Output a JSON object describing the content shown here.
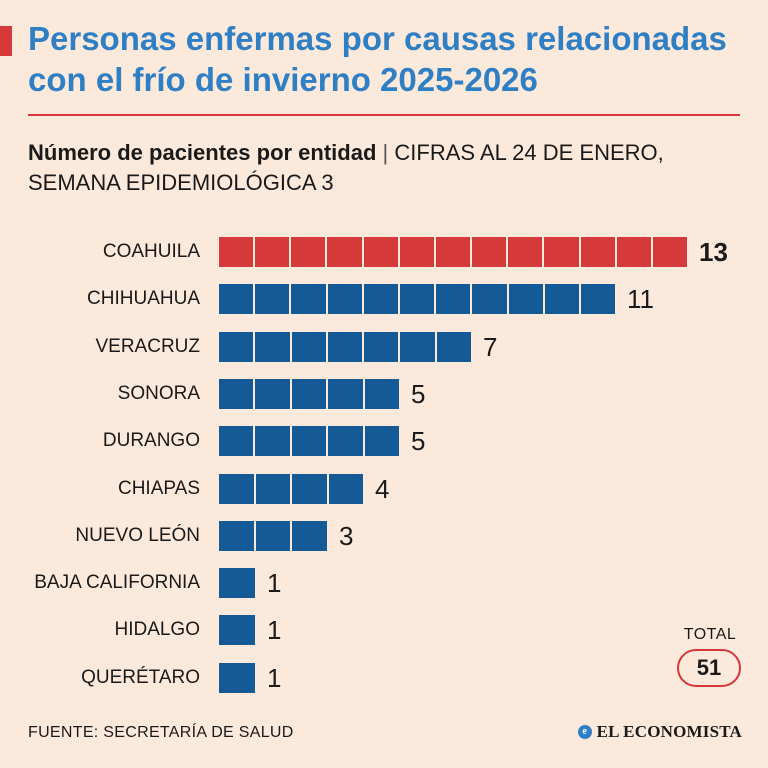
{
  "title": "Personas enfermas por causas relacionadas con el frío de invierno 2025-2026",
  "subtitle_bold": "Número de pacientes por entidad",
  "subtitle_separator": "|",
  "subtitle_rest": "CIFRAS AL 24 DE ENERO, SEMANA EPIDEMIOLÓGICA 3",
  "total": {
    "label": "TOTAL",
    "value": "51"
  },
  "source": "FUENTE: SECRETARÍA DE SALUD",
  "brand": "EL ECONOMISTA",
  "colors": {
    "highlight": "#d6393a",
    "bar": "#135a96",
    "title": "#2f7fc4",
    "background": "#fbe9dc"
  },
  "chart_data": {
    "type": "bar",
    "orientation": "horizontal",
    "title": "Número de pacientes por entidad",
    "categories": [
      "COAHUILA",
      "CHIHUAHUA",
      "VERACRUZ",
      "SONORA",
      "DURANGO",
      "CHIAPAS",
      "NUEVO LEÓN",
      "BAJA CALIFORNIA",
      "HIDALGO",
      "QUERÉTARO"
    ],
    "values": [
      13,
      11,
      7,
      5,
      5,
      4,
      3,
      1,
      1,
      1
    ],
    "highlight_index": 0,
    "unit": "pacientes",
    "xlim": [
      0,
      13
    ]
  }
}
